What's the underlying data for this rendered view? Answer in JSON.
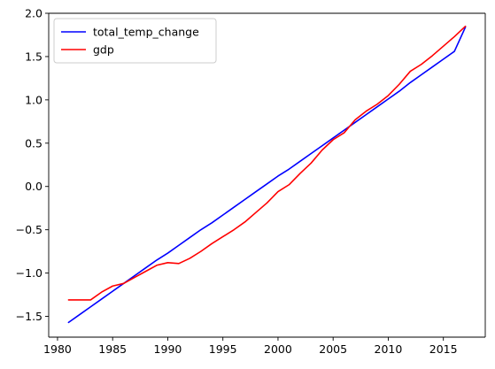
{
  "chart_data": {
    "type": "line",
    "title": "",
    "xlabel": "",
    "ylabel": "",
    "xlim": [
      1979.2,
      2018.8
    ],
    "ylim": [
      -1.74,
      2.0
    ],
    "xticks": [
      1980,
      1985,
      1990,
      1995,
      2000,
      2005,
      2010,
      2015
    ],
    "yticks": [
      -1.5,
      -1.0,
      -0.5,
      0.0,
      0.5,
      1.0,
      1.5,
      2.0
    ],
    "xtick_labels": [
      "1980",
      "1985",
      "1990",
      "1995",
      "2000",
      "2005",
      "2010",
      "2015"
    ],
    "ytick_labels": [
      "−1.5",
      "−1.0",
      "−0.5",
      "0.0",
      "0.5",
      "1.0",
      "1.5",
      "2.0"
    ],
    "grid": false,
    "legend_position": "top-left",
    "x": [
      1981,
      1982,
      1983,
      1984,
      1985,
      1986,
      1987,
      1988,
      1989,
      1990,
      1991,
      1992,
      1993,
      1994,
      1995,
      1996,
      1997,
      1998,
      1999,
      2000,
      2001,
      2002,
      2003,
      2004,
      2005,
      2006,
      2007,
      2008,
      2009,
      2010,
      2011,
      2012,
      2013,
      2014,
      2015,
      2016,
      2017
    ],
    "series": [
      {
        "name": "total_temp_change",
        "color": "#0000ff",
        "values": [
          -1.57,
          -1.48,
          -1.39,
          -1.3,
          -1.21,
          -1.12,
          -1.03,
          -0.94,
          -0.85,
          -0.77,
          -0.68,
          -0.59,
          -0.5,
          -0.42,
          -0.33,
          -0.24,
          -0.15,
          -0.06,
          0.03,
          0.12,
          0.2,
          0.29,
          0.38,
          0.47,
          0.56,
          0.65,
          0.74,
          0.83,
          0.92,
          1.01,
          1.1,
          1.2,
          1.29,
          1.38,
          1.47,
          1.56,
          1.84
        ]
      },
      {
        "name": "gdp",
        "color": "#ff0000",
        "values": [
          -1.31,
          -1.31,
          -1.31,
          -1.22,
          -1.15,
          -1.12,
          -1.05,
          -0.98,
          -0.91,
          -0.88,
          -0.89,
          -0.83,
          -0.75,
          -0.66,
          -0.58,
          -0.5,
          -0.41,
          -0.3,
          -0.19,
          -0.06,
          0.02,
          0.15,
          0.27,
          0.42,
          0.54,
          0.62,
          0.77,
          0.87,
          0.95,
          1.05,
          1.18,
          1.33,
          1.41,
          1.51,
          1.62,
          1.73,
          1.85
        ]
      }
    ]
  }
}
